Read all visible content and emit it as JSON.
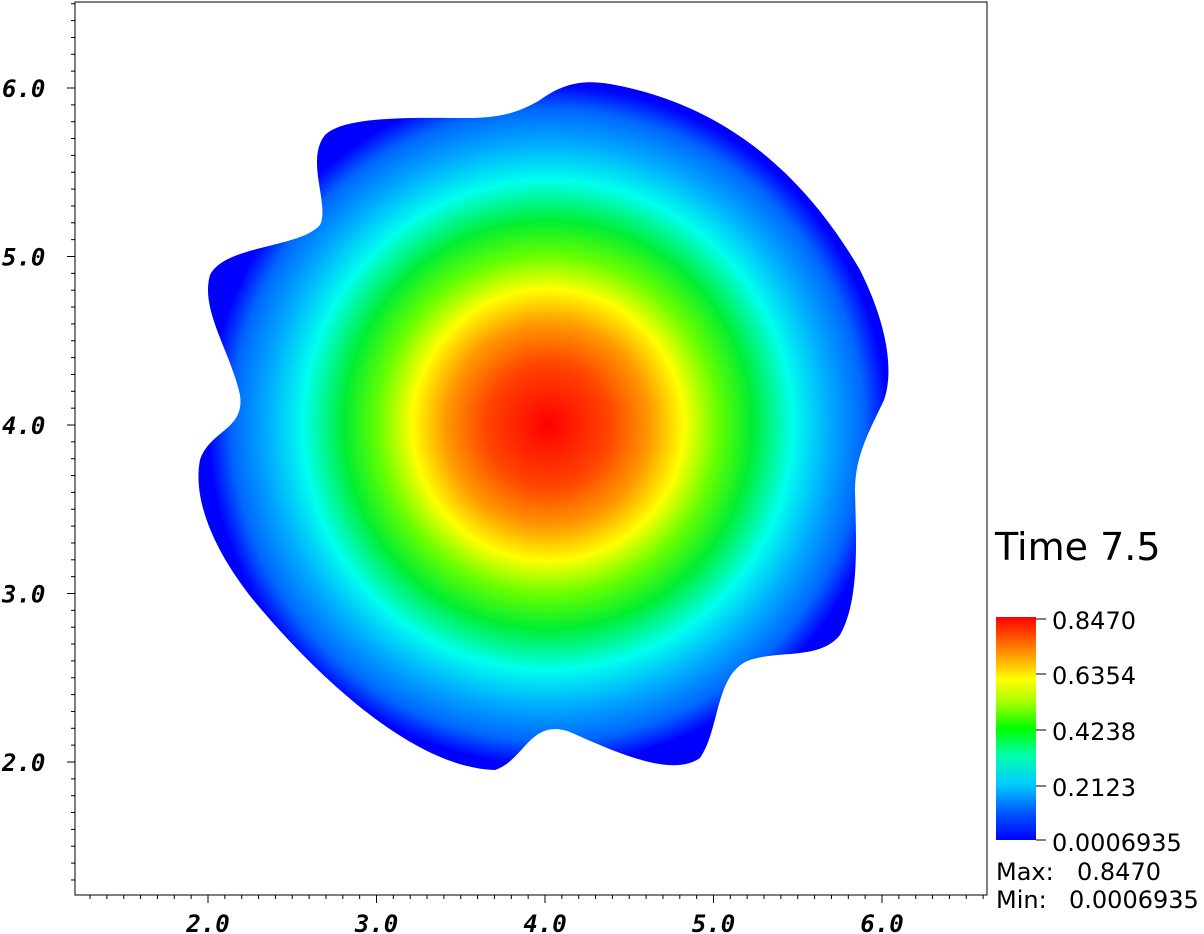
{
  "chart_data": {
    "type": "heatmap",
    "title": "Time 7.5",
    "xlim": [
      1.2,
      6.6
    ],
    "ylim": [
      1.2,
      6.5
    ],
    "x_ticks": [
      "2.0",
      "3.0",
      "4.0",
      "5.0",
      "6.0"
    ],
    "x_tick_values": [
      2.0,
      3.0,
      4.0,
      5.0,
      6.0
    ],
    "y_ticks": [
      "2.0",
      "3.0",
      "4.0",
      "5.0",
      "6.0"
    ],
    "y_tick_values": [
      2.0,
      3.0,
      4.0,
      5.0,
      6.0
    ],
    "center": [
      4.0,
      4.0
    ],
    "peak_value": 0.847,
    "colorbar": {
      "colormap": "jet",
      "labels": [
        "0.8470",
        "0.6354",
        "0.4238",
        "0.2123",
        "0.0006935"
      ],
      "range": [
        0.0006935,
        0.847
      ]
    },
    "grid": false
  },
  "stats": {
    "max_label": "Max:",
    "max_value": "0.8470",
    "min_label": "Min:",
    "min_value": "0.0006935"
  }
}
